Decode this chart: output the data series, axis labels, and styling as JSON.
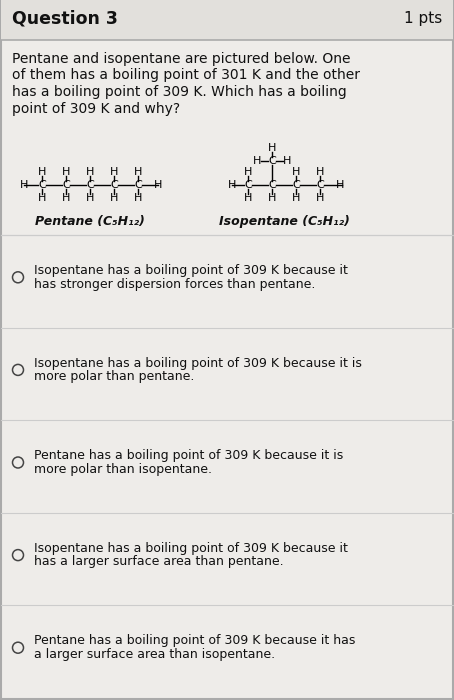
{
  "title": "Question 3",
  "pts": "1 pts",
  "background_color": "#eeece9",
  "header_bg": "#e2e0dc",
  "question_text_lines": [
    "Pentane and isopentane are pictured below. One",
    "of them has a boiling point of 301 K and the other",
    "has a boiling point of 309 K. Which has a boiling",
    "point of 309 K and why?"
  ],
  "answer_choices": [
    [
      "Isopentane has a boiling point of 309 K because it",
      "has stronger dispersion forces than pentane."
    ],
    [
      "Isopentane has a boiling point of 309 K because it is",
      "more polar than pentane."
    ],
    [
      "Pentane has a boiling point of 309 K because it is",
      "more polar than isopentane."
    ],
    [
      "Isopentane has a boiling point of 309 K because it",
      "has a larger surface area than pentane."
    ],
    [
      "Pentane has a boiling point of 309 K because it has",
      "a larger surface area than isopentane."
    ]
  ],
  "pentane_label": "Pentane (C₅H₁₂)",
  "isopentane_label": "Isopentane (C₅H₁₂)",
  "border_color": "#aaaaaa",
  "text_color": "#111111",
  "divider_color": "#cccccc",
  "header_divider_color": "#aaaaaa"
}
